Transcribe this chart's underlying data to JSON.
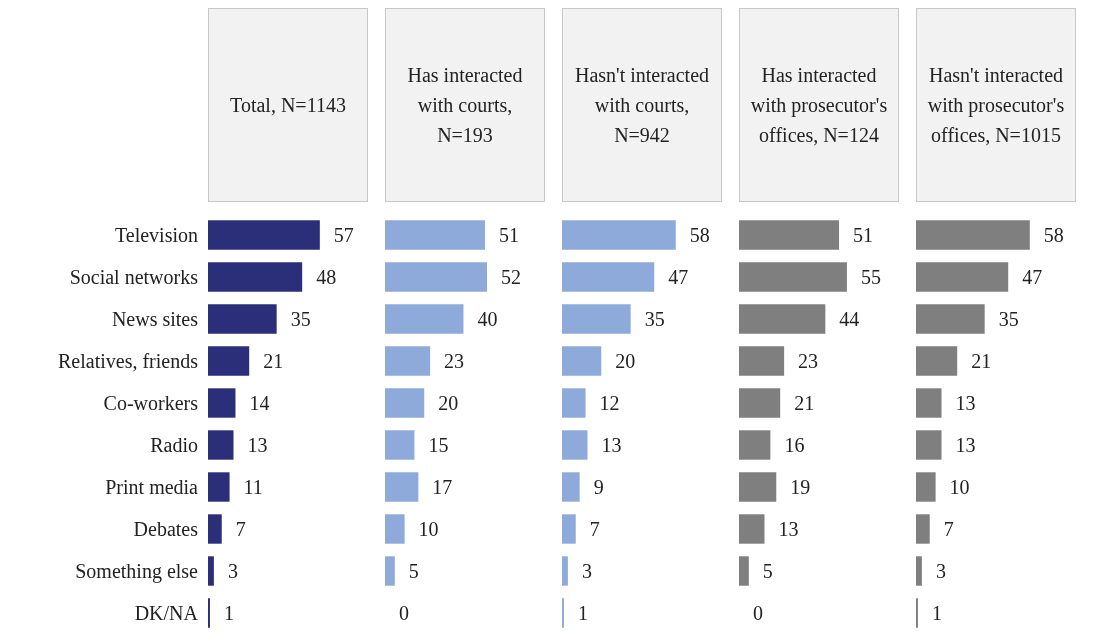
{
  "chart_data": [
    {
      "type": "bar",
      "orientation": "horizontal",
      "title": "Total, N=1143",
      "categories": [
        "Television",
        "Social networks",
        "News sites",
        "Relatives, friends",
        "Co-workers",
        "Radio",
        "Print media",
        "Debates",
        "Something else",
        "DK/NA"
      ],
      "values": [
        57,
        48,
        35,
        21,
        14,
        13,
        11,
        7,
        3,
        1
      ],
      "color": "#2b2f7a",
      "data_labels": true,
      "tick_labels": "y"
    },
    {
      "type": "bar",
      "orientation": "horizontal",
      "title": "Has interacted with courts, N=193",
      "categories": [
        null,
        null,
        null,
        null,
        null,
        null,
        null,
        null,
        null,
        null
      ],
      "values": [
        51,
        52,
        40,
        23,
        20,
        15,
        17,
        10,
        5,
        0
      ],
      "color": "#8eaadb",
      "data_labels": true,
      "tick_labels": false
    },
    {
      "type": "bar",
      "orientation": "horizontal",
      "title": "Hasn't interacted with courts, N=942",
      "categories": [
        null,
        null,
        null,
        null,
        null,
        null,
        null,
        null,
        null,
        null
      ],
      "values": [
        58,
        47,
        35,
        20,
        12,
        13,
        9,
        7,
        3,
        1
      ],
      "color": "#8eaadb",
      "data_labels": true,
      "tick_labels": false
    },
    {
      "type": "bar",
      "orientation": "horizontal",
      "title": "Has interacted with prosecutor's offices, N=124",
      "categories": [
        null,
        null,
        null,
        null,
        null,
        null,
        null,
        null,
        null,
        null
      ],
      "values": [
        51,
        55,
        44,
        23,
        21,
        16,
        19,
        13,
        5,
        0
      ],
      "color": "#7f7f7f",
      "data_labels": true,
      "tick_labels": false
    },
    {
      "type": "bar",
      "orientation": "horizontal",
      "title": "Hasn't interacted with prosecutor's offices, N=1015",
      "categories": [
        null,
        null,
        null,
        null,
        null,
        null,
        null,
        null,
        null,
        null
      ],
      "values": [
        58,
        47,
        35,
        21,
        13,
        13,
        10,
        7,
        3,
        1
      ],
      "color": "#7f7f7f",
      "data_labels": true,
      "tick_labels": false
    }
  ]
}
